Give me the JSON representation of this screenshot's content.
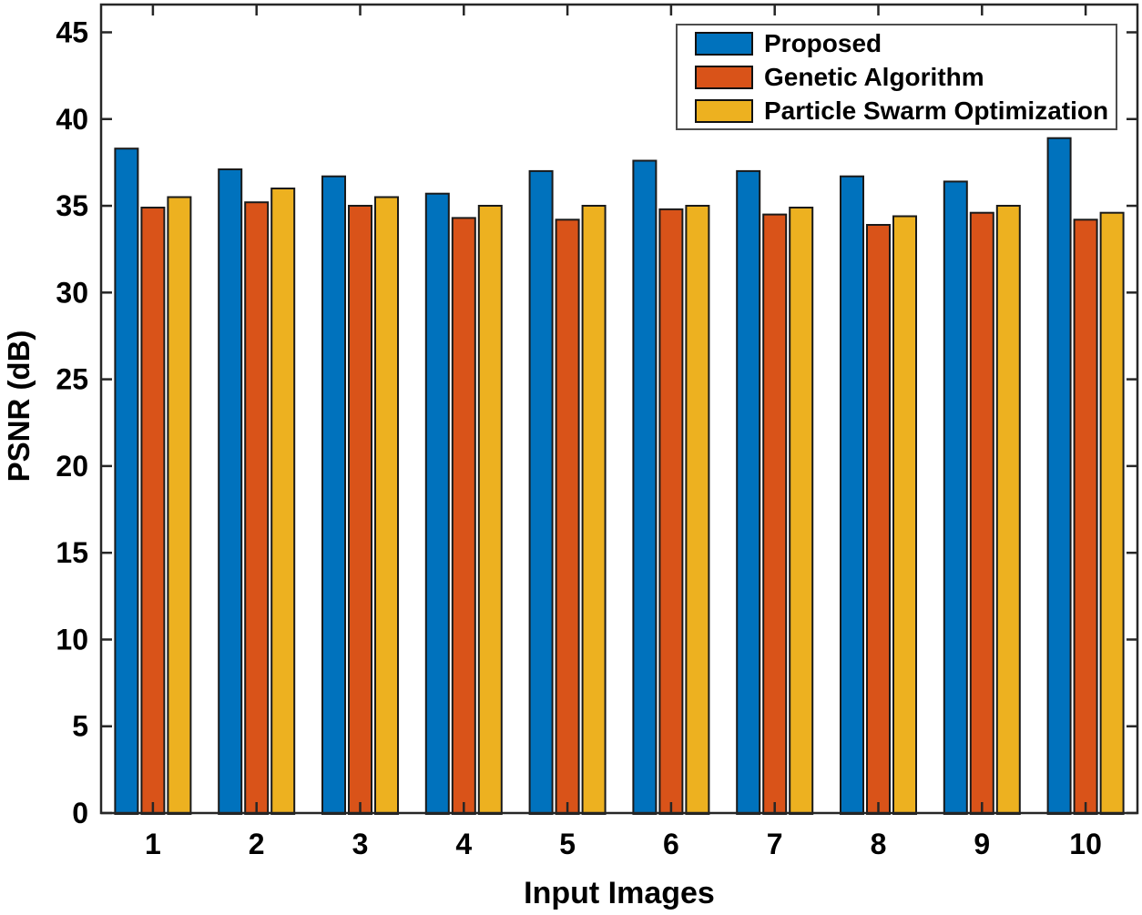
{
  "chart_data": {
    "type": "bar",
    "title": "",
    "xlabel": "Input Images",
    "ylabel": "PSNR (dB)",
    "categories": [
      "1",
      "2",
      "3",
      "4",
      "5",
      "6",
      "7",
      "8",
      "9",
      "10"
    ],
    "series": [
      {
        "name": "Proposed",
        "color": "#0072BD",
        "values": [
          38.3,
          37.1,
          36.7,
          35.7,
          37.0,
          37.6,
          37.0,
          36.7,
          36.4,
          38.9
        ]
      },
      {
        "name": "Genetic Algorithm",
        "color": "#D95319",
        "values": [
          34.9,
          35.2,
          35.0,
          34.3,
          34.2,
          34.8,
          34.5,
          33.9,
          34.6,
          34.2
        ]
      },
      {
        "name": "Particle Swarm Optimization",
        "color": "#EDB120",
        "values": [
          35.5,
          36.0,
          35.5,
          35.0,
          35.0,
          35.0,
          34.9,
          34.4,
          35.0,
          34.6
        ]
      }
    ],
    "ylim": [
      0,
      46.6
    ],
    "yticks": [
      0,
      5,
      10,
      15,
      20,
      25,
      30,
      35,
      40,
      45
    ],
    "grid": false,
    "legend_position": "top-right",
    "bar_edge_color": "#1a1a1a",
    "axis_color": "#262626",
    "tick_label_color": "#000000"
  }
}
